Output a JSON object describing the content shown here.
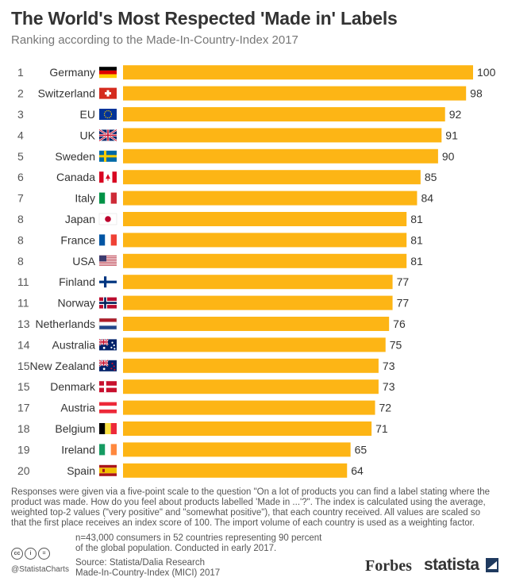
{
  "title": "The World's Most Respected 'Made in' Labels",
  "subtitle": "Ranking according to the Made-In-Country-Index 2017",
  "footnote": "Responses were given via a five-point scale to the question \"On a lot of products you can find a label stating where the product was made. How do you feel about products labelled 'Made in ...'?\". The index is calculated using the average, weighted top-2 values (\"very positive\" and \"somewhat positive\"), that each country received. All values are scaled so that the first place receives an index score of 100. The import volume of each country is used as a weighting factor.",
  "sample_note": "n=43,000 consumers in 52 countries representing 90 percent of the global population. Conducted in early 2017.",
  "source_line1": "Source: Statista/Dalia Research",
  "source_line2": "Made-In-Country-Index (MICI) 2017",
  "handle": "@StatistaCharts",
  "brand_forbes": "Forbes",
  "brand_statista": "statista",
  "colors": {
    "bar": "#FDB515",
    "text": "#333333",
    "muted": "#777777"
  },
  "chart_data": {
    "type": "bar",
    "orientation": "horizontal",
    "xlim": [
      0,
      100
    ],
    "grid": false,
    "ranks": [
      "1",
      "2",
      "3",
      "4",
      "5",
      "6",
      "7",
      "8",
      "8",
      "8",
      "11",
      "11",
      "13",
      "14",
      "15",
      "15",
      "17",
      "18",
      "19",
      "20"
    ],
    "categories": [
      "Germany",
      "Switzerland",
      "EU",
      "UK",
      "Sweden",
      "Canada",
      "Italy",
      "Japan",
      "France",
      "USA",
      "Finland",
      "Norway",
      "Netherlands",
      "Australia",
      "New Zealand",
      "Denmark",
      "Austria",
      "Belgium",
      "Ireland",
      "Spain"
    ],
    "flags": [
      "flag-germany",
      "flag-switzerland",
      "flag-eu",
      "flag-uk",
      "flag-sweden",
      "flag-canada",
      "flag-italy",
      "flag-japan",
      "flag-france",
      "flag-usa",
      "flag-finland",
      "flag-norway",
      "flag-netherlands",
      "flag-australia",
      "flag-new-zealand",
      "flag-denmark",
      "flag-austria",
      "flag-belgium",
      "flag-ireland",
      "flag-spain"
    ],
    "values": [
      100,
      98,
      92,
      91,
      90,
      85,
      84,
      81,
      81,
      81,
      77,
      77,
      76,
      75,
      73,
      73,
      72,
      71,
      65,
      64
    ]
  }
}
